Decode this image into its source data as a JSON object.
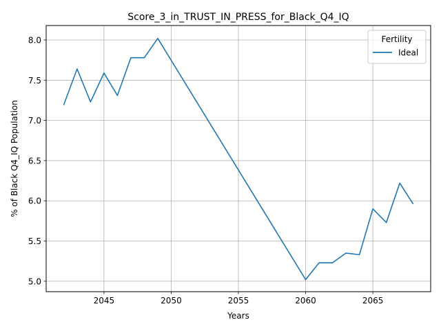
{
  "chart_data": {
    "type": "line",
    "title": "Score_3_in_TRUST_IN_PRESS_for_Black_Q4_IQ",
    "xlabel": "Years",
    "ylabel": "% of Black Q4_IQ Population",
    "xlim": [
      2040.7,
      2069.3
    ],
    "ylim": [
      4.87,
      8.18
    ],
    "xticks": [
      2045,
      2050,
      2055,
      2060,
      2065
    ],
    "yticks": [
      5.0,
      5.5,
      6.0,
      6.5,
      7.0,
      7.5,
      8.0
    ],
    "xtick_labels": [
      "2045",
      "2050",
      "2055",
      "2060",
      "2065"
    ],
    "ytick_labels": [
      "5.0",
      "5.5",
      "6.0",
      "6.5",
      "7.0",
      "7.5",
      "8.0"
    ],
    "grid": true,
    "legend": {
      "title": "Fertility",
      "placement": "top-right"
    },
    "series": [
      {
        "name": "Ideal",
        "color": "#1f77b4",
        "x": [
          2042,
          2043,
          2044,
          2045,
          2046,
          2047,
          2048,
          2049,
          2060,
          2061,
          2062,
          2063,
          2064,
          2065,
          2066,
          2067,
          2068
        ],
        "y": [
          7.19,
          7.64,
          7.23,
          7.59,
          7.31,
          7.78,
          7.78,
          8.02,
          5.02,
          5.23,
          5.23,
          5.35,
          5.33,
          5.9,
          5.73,
          6.22,
          5.96
        ]
      }
    ]
  }
}
